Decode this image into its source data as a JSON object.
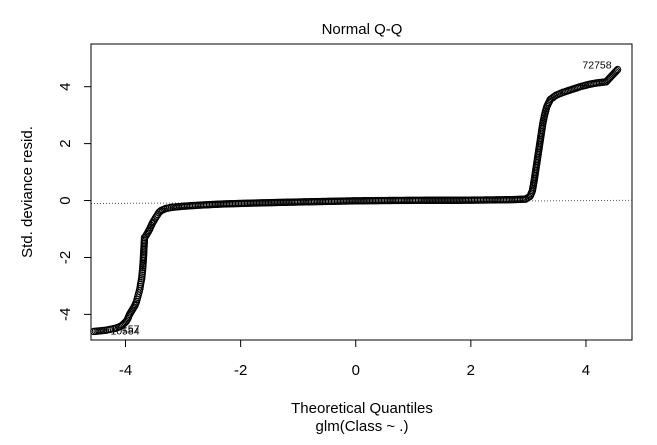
{
  "chart_data": {
    "type": "scatter",
    "title": "Normal Q-Q",
    "xlabel": "Theoretical Quantiles",
    "sub_caption": "glm(Class ~ .)",
    "ylabel": "Std. deviance resid.",
    "xlim": [
      -4.6,
      4.8
    ],
    "ylim": [
      -4.9,
      5.5
    ],
    "x_ticks": [
      -4,
      -2,
      0,
      2,
      4
    ],
    "x_tick_labels": [
      "-4",
      "-2",
      "0",
      "2",
      "4"
    ],
    "y_ticks": [
      -4,
      -2,
      0,
      2,
      4
    ],
    "y_tick_labels": [
      "-4",
      "-2",
      "0",
      "2",
      "4"
    ],
    "grid": false,
    "reference_line": {
      "style": "dotted",
      "intercept": -0.05,
      "slope": 0.012
    },
    "marker": "open-circle",
    "series": [
      {
        "points": [
          [
            -4.55,
            -4.6
          ],
          [
            -4.35,
            -4.56
          ],
          [
            -4.25,
            -4.52
          ],
          [
            -4.18,
            -4.49
          ],
          [
            -4.12,
            -4.45
          ],
          [
            -4.07,
            -4.4
          ],
          [
            -4.03,
            -4.33
          ],
          [
            -3.99,
            -4.25
          ],
          [
            -3.96,
            -4.15
          ],
          [
            -3.93,
            -4.0
          ],
          [
            -3.9,
            -3.9
          ],
          [
            -3.87,
            -3.8
          ],
          [
            -3.84,
            -3.7
          ],
          [
            -3.81,
            -3.55
          ],
          [
            -3.79,
            -3.4
          ],
          [
            -3.77,
            -3.25
          ],
          [
            -3.75,
            -3.1
          ],
          [
            -3.74,
            -2.95
          ],
          [
            -3.72,
            -2.75
          ],
          [
            -3.71,
            -2.55
          ],
          [
            -3.7,
            -2.35
          ],
          [
            -3.69,
            -2.05
          ],
          [
            -3.67,
            -1.3
          ],
          [
            -3.65,
            -1.25
          ],
          [
            -3.62,
            -1.15
          ],
          [
            -3.58,
            -1.0
          ],
          [
            -3.54,
            -0.82
          ],
          [
            -3.5,
            -0.68
          ],
          [
            -3.46,
            -0.55
          ],
          [
            -3.42,
            -0.42
          ],
          [
            -3.38,
            -0.35
          ],
          [
            -3.3,
            -0.28
          ],
          [
            -3.2,
            -0.24
          ],
          [
            -3.0,
            -0.2
          ],
          [
            -2.7,
            -0.16
          ],
          [
            -2.3,
            -0.12
          ],
          [
            -1.8,
            -0.09
          ],
          [
            -1.2,
            -0.06
          ],
          [
            -0.5,
            -0.03
          ],
          [
            0.0,
            -0.01
          ],
          [
            0.5,
            0.0
          ],
          [
            1.2,
            0.01
          ],
          [
            1.8,
            0.01
          ],
          [
            2.3,
            0.02
          ],
          [
            2.7,
            0.03
          ],
          [
            2.95,
            0.05
          ],
          [
            3.03,
            0.15
          ],
          [
            3.07,
            0.35
          ],
          [
            3.1,
            0.7
          ],
          [
            3.13,
            1.1
          ],
          [
            3.16,
            1.5
          ],
          [
            3.19,
            1.9
          ],
          [
            3.22,
            2.3
          ],
          [
            3.25,
            2.7
          ],
          [
            3.28,
            3.0
          ],
          [
            3.32,
            3.3
          ],
          [
            3.38,
            3.55
          ],
          [
            3.48,
            3.7
          ],
          [
            3.6,
            3.8
          ],
          [
            3.75,
            3.9
          ],
          [
            3.9,
            4.0
          ],
          [
            4.05,
            4.08
          ],
          [
            4.18,
            4.13
          ],
          [
            4.35,
            4.17
          ],
          [
            4.55,
            4.6
          ]
        ]
      }
    ],
    "annotations": [
      {
        "text": "72758",
        "x": 4.55,
        "y": 4.6,
        "anchor": "end"
      },
      {
        "text": "10584",
        "x": -4.35,
        "y": -4.56,
        "anchor": "start"
      },
      {
        "text": "157",
        "x": -4.15,
        "y": -4.5,
        "anchor": "start"
      }
    ]
  }
}
